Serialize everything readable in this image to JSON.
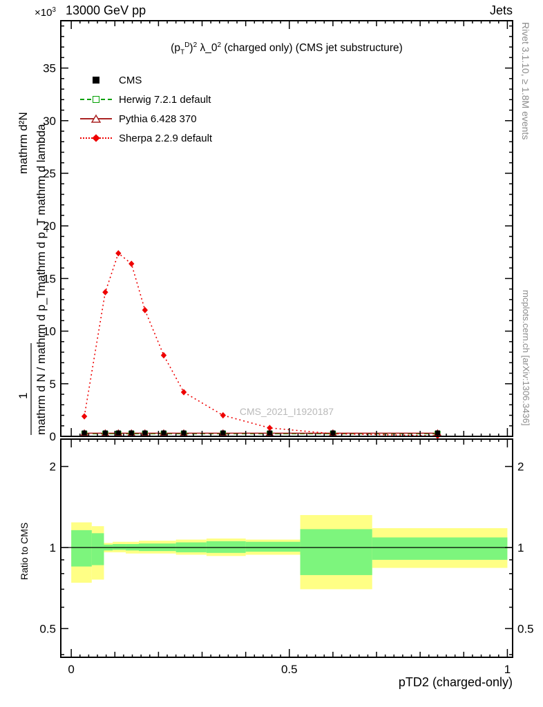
{
  "header": {
    "beam": "13000 GeV pp",
    "category": "Jets"
  },
  "axes": {
    "scale_base": "×10",
    "scale_exp": "3",
    "xlabel": "pTD2 (charged-only)",
    "ratio_ylabel": "Ratio to CMS",
    "ylabel_d2n": "mathrm d²N",
    "ylabel_one": "1",
    "ylabel_dn_dpt": "mathrm d N / mathrm d p_T",
    "ylabel_dpt_dlambda": "mathrm d p_T mathrm d lambda"
  },
  "title": {
    "open": "(p",
    "sub_t": "T",
    "sup_d": "D",
    "close": ")",
    "sup_sq": "2",
    "lambda": " λ_0",
    "sup_sq2": "2",
    "rest": " (charged only) (CMS jet substructure)"
  },
  "legend": [
    {
      "label": "CMS"
    },
    {
      "label": "Herwig 7.2.1 default"
    },
    {
      "label": "Pythia 6.428 370"
    },
    {
      "label": "Sherpa 2.2.9 default"
    }
  ],
  "watermark": "CMS_2021_I1920187",
  "side": {
    "rivet": "Rivet 3.1.10, ≥ 1.8M events",
    "mcplots": "mcplots.cern.ch [arXiv:1306.3436]"
  },
  "colors": {
    "cms": "#000000",
    "herwig": "#00a000",
    "pythia": "#aa2222",
    "sherpa": "#ee0000",
    "band_yellow": "#ffff85",
    "band_green": "#7df57d",
    "watermark": "#b9b9b9",
    "side_text": "#8c8c8c",
    "frame": "#000000"
  },
  "chart_data": [
    {
      "type": "line",
      "title": "(p_T^D)^2 λ_0^2 (charged only) (CMS jet substructure)",
      "xlabel": "pTD2 (charged-only)",
      "ylabel": "1/(mathrm dN/mathrm dp_T) mathrm d²N/(mathrm dp_T mathrm dlambda)",
      "y_units": "×10³",
      "xlim": [
        0,
        1
      ],
      "ylim": [
        0,
        39.5
      ],
      "xticks": [
        0,
        0.5,
        1
      ],
      "yticks": [
        0,
        5,
        10,
        15,
        20,
        25,
        30,
        35
      ],
      "x": [
        0.03,
        0.078,
        0.108,
        0.138,
        0.169,
        0.212,
        0.258,
        0.348,
        0.455,
        0.6,
        0.84
      ],
      "series": [
        {
          "name": "CMS",
          "marker": "filled-square",
          "color_key": "cms",
          "values": [
            0.33,
            0.33,
            0.33,
            0.33,
            0.33,
            0.33,
            0.33,
            0.33,
            0.33,
            0.33,
            0.33
          ]
        },
        {
          "name": "Herwig 7.2.1 default",
          "marker": "open-square",
          "line": "dashed",
          "color_key": "herwig",
          "values": [
            0.25,
            0.25,
            0.25,
            0.25,
            0.25,
            0.25,
            0.25,
            0.25,
            0.25,
            0.25,
            0.25
          ]
        },
        {
          "name": "Pythia 6.428 370",
          "marker": "open-triangle",
          "line": "solid",
          "color_key": "pythia",
          "values": [
            0.3,
            0.3,
            0.3,
            0.3,
            0.3,
            0.3,
            0.3,
            0.3,
            0.3,
            0.3,
            0.3
          ]
        },
        {
          "name": "Sherpa 2.2.9 default",
          "marker": "filled-diamond",
          "line": "dotted",
          "color_key": "sherpa",
          "values": [
            1.9,
            13.7,
            17.4,
            16.4,
            12.0,
            7.7,
            4.2,
            2.0,
            0.8,
            0.25,
            0.05
          ]
        }
      ]
    },
    {
      "type": "ratio-band",
      "ylabel": "Ratio to CMS",
      "yscale": "log",
      "ylim": [
        0.39,
        2.53
      ],
      "yticks": [
        0.5,
        1,
        2
      ],
      "yticks_minor": [
        0.4,
        0.6,
        0.7,
        0.8,
        0.9
      ],
      "reference_line": 1,
      "bands": [
        {
          "x0": 0.0,
          "x1": 0.047,
          "yellow": [
            0.74,
            1.24
          ],
          "green": [
            0.85,
            1.16
          ]
        },
        {
          "x0": 0.047,
          "x1": 0.075,
          "yellow": [
            0.76,
            1.2
          ],
          "green": [
            0.86,
            1.13
          ]
        },
        {
          "x0": 0.075,
          "x1": 0.095,
          "yellow": [
            0.96,
            1.04
          ],
          "green": [
            0.975,
            1.025
          ]
        },
        {
          "x0": 0.095,
          "x1": 0.125,
          "yellow": [
            0.96,
            1.05
          ],
          "green": [
            0.98,
            1.03
          ]
        },
        {
          "x0": 0.125,
          "x1": 0.155,
          "yellow": [
            0.95,
            1.05
          ],
          "green": [
            0.975,
            1.03
          ]
        },
        {
          "x0": 0.155,
          "x1": 0.24,
          "yellow": [
            0.95,
            1.06
          ],
          "green": [
            0.97,
            1.035
          ]
        },
        {
          "x0": 0.24,
          "x1": 0.31,
          "yellow": [
            0.94,
            1.07
          ],
          "green": [
            0.96,
            1.045
          ]
        },
        {
          "x0": 0.31,
          "x1": 0.4,
          "yellow": [
            0.93,
            1.08
          ],
          "green": [
            0.955,
            1.055
          ]
        },
        {
          "x0": 0.4,
          "x1": 0.525,
          "yellow": [
            0.94,
            1.07
          ],
          "green": [
            0.965,
            1.05
          ]
        },
        {
          "x0": 0.525,
          "x1": 0.69,
          "yellow": [
            0.7,
            1.32
          ],
          "green": [
            0.79,
            1.17
          ]
        },
        {
          "x0": 0.69,
          "x1": 1.0,
          "yellow": [
            0.84,
            1.18
          ],
          "green": [
            0.9,
            1.09
          ]
        }
      ]
    }
  ]
}
